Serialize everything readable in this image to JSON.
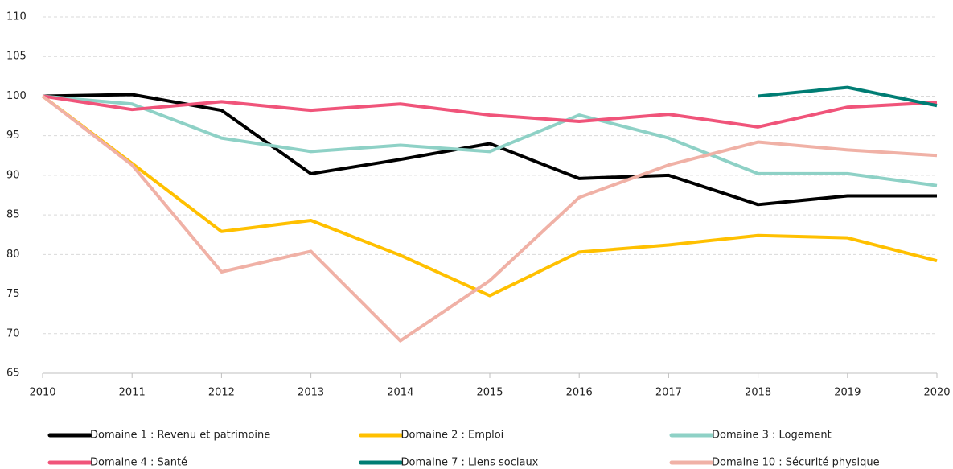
{
  "chart_data": {
    "type": "line",
    "x": [
      2010,
      2011,
      2012,
      2013,
      2014,
      2015,
      2016,
      2017,
      2018,
      2019,
      2020
    ],
    "series": [
      {
        "name": "Domaine 1 : Revenu et patrimoine",
        "color": "#000000",
        "values": [
          100,
          100.2,
          98.2,
          90.2,
          92,
          94,
          89.6,
          90,
          86.3,
          87.4,
          87.4
        ]
      },
      {
        "name": "Domaine 2 : Emploi",
        "color": "#ffc000",
        "values": [
          100,
          91.5,
          82.9,
          84.3,
          79.9,
          74.8,
          80.3,
          81.2,
          82.4,
          82.1,
          79.2
        ]
      },
      {
        "name": "Domaine 3 : Logement",
        "color": "#8ed1c6",
        "values": [
          100,
          99,
          94.7,
          93,
          93.8,
          93,
          97.6,
          94.7,
          90.2,
          90.2,
          88.7
        ]
      },
      {
        "name": "Domaine 4 : Santé",
        "color": "#f0547a",
        "values": [
          100,
          98.3,
          99.3,
          98.2,
          99,
          97.6,
          96.8,
          97.7,
          96.1,
          98.6,
          99.2
        ]
      },
      {
        "name": "Domaine 7 : Liens sociaux",
        "color": "#007d74",
        "values": [
          null,
          null,
          null,
          null,
          null,
          null,
          null,
          null,
          100,
          101.1,
          98.8
        ]
      },
      {
        "name": "Domaine 10 : Sécurité physique",
        "color": "#f0b1a6",
        "values": [
          100,
          91.3,
          77.8,
          80.4,
          69.1,
          76.7,
          87.2,
          91.3,
          94.2,
          93.2,
          92.5
        ]
      }
    ],
    "xlim": [
      2010,
      2020
    ],
    "xticks": [
      2010,
      2011,
      2012,
      2013,
      2014,
      2015,
      2016,
      2017,
      2018,
      2019,
      2020
    ],
    "ylim": [
      65,
      110
    ],
    "yticks": [
      65,
      70,
      75,
      80,
      85,
      90,
      95,
      100,
      105,
      110
    ],
    "grid": true,
    "legend": "bottom"
  }
}
